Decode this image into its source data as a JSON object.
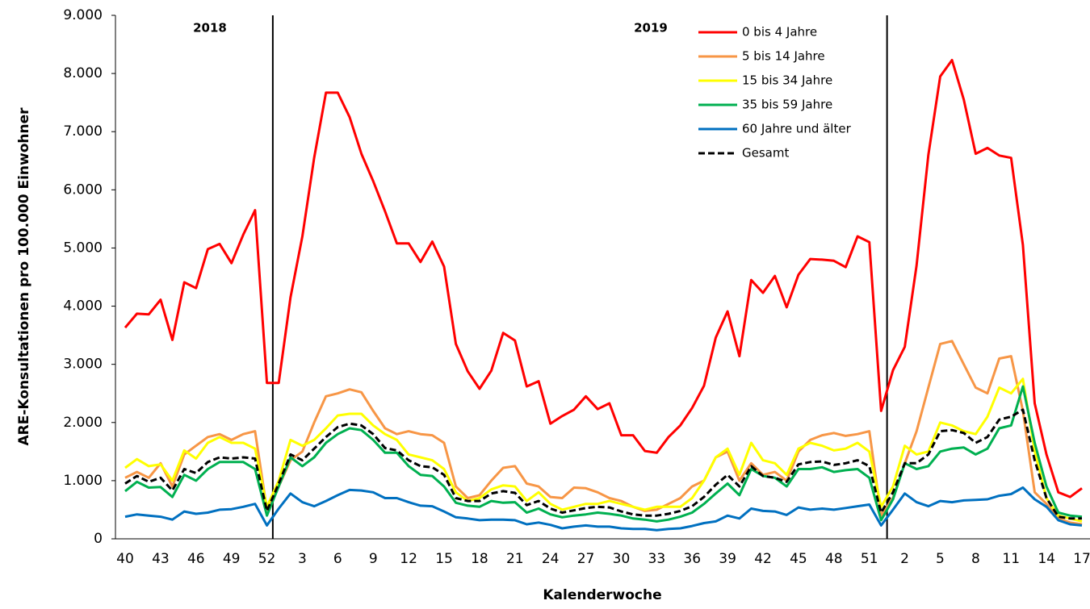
{
  "chart_data": {
    "type": "line",
    "y_label": "ARE-Konsultationen pro 100.000 Einwohner",
    "x_label": "Kalenderwoche",
    "annotations": [
      "2018",
      "2019"
    ],
    "categories": [
      "40",
      null,
      null,
      "43",
      null,
      null,
      "46",
      null,
      null,
      "49",
      null,
      null,
      "52",
      null,
      null,
      "3",
      null,
      null,
      "6",
      null,
      null,
      "9",
      null,
      null,
      "12",
      null,
      null,
      "15",
      null,
      null,
      "18",
      null,
      null,
      "21",
      null,
      null,
      "24",
      null,
      null,
      "27",
      null,
      null,
      "30",
      null,
      null,
      "33",
      null,
      null,
      "36",
      null,
      null,
      "39",
      null,
      null,
      "42",
      null,
      null,
      "45",
      null,
      null,
      "48",
      null,
      null,
      "51",
      null,
      null,
      "2",
      null,
      null,
      "5",
      null,
      null,
      "8",
      null,
      null,
      "11",
      null,
      null,
      "14",
      null,
      null,
      "17"
    ],
    "ylim": [
      0,
      9000
    ],
    "yticks": [
      0,
      {
        "value": 1000,
        "label": "1.000"
      },
      {
        "value": 2000,
        "label": "2.000"
      },
      {
        "value": 3000,
        "label": "3.000"
      },
      {
        "value": 4000,
        "label": "4.000"
      },
      {
        "value": 5000,
        "label": "5.000"
      },
      {
        "value": 6000,
        "label": "6.000"
      },
      {
        "value": 7000,
        "label": "7.000"
      },
      {
        "value": 8000,
        "label": "8.000"
      },
      {
        "value": 9000,
        "label": "9.000"
      }
    ],
    "legend": "top-right",
    "series": [
      {
        "name": "0 bis 4 Jahre",
        "color": "#ff0000",
        "values": [
          3630,
          3870,
          3860,
          4110,
          3420,
          4410,
          4310,
          4980,
          5070,
          4740,
          5230,
          5650,
          2680,
          2680,
          4150,
          5200,
          6550,
          7670,
          7670,
          7250,
          6620,
          6150,
          5630,
          5080,
          5080,
          4760,
          5110,
          4680,
          3350,
          2880,
          2580,
          2890,
          3540,
          3410,
          2620,
          2710,
          1980,
          2110,
          2220,
          2450,
          2230,
          2330,
          1780,
          1780,
          1510,
          1480,
          1750,
          1950,
          2250,
          2630,
          3460,
          3910,
          3140,
          4450,
          4230,
          4520,
          3980,
          4540,
          4810,
          4800,
          4780,
          4670,
          5200,
          5100,
          2200,
          2900,
          3300,
          4700,
          6600,
          7950,
          8230,
          7550,
          6620,
          6720,
          6590,
          6550,
          5050,
          2330,
          1450,
          800,
          720,
          870
        ]
      },
      {
        "name": "5 bis 14 Jahre",
        "color": "#f79646",
        "values": [
          1050,
          1150,
          1050,
          1300,
          900,
          1450,
          1600,
          1750,
          1800,
          1700,
          1800,
          1850,
          500,
          900,
          1350,
          1500,
          2000,
          2450,
          2500,
          2570,
          2520,
          2200,
          1900,
          1800,
          1850,
          1800,
          1780,
          1650,
          900,
          700,
          750,
          1000,
          1220,
          1250,
          950,
          900,
          720,
          700,
          880,
          870,
          800,
          700,
          650,
          550,
          480,
          500,
          600,
          700,
          900,
          1000,
          1400,
          1500,
          1000,
          1300,
          1100,
          1150,
          1000,
          1500,
          1700,
          1780,
          1820,
          1770,
          1800,
          1850,
          400,
          700,
          1300,
          1850,
          2600,
          3350,
          3400,
          3000,
          2600,
          2500,
          3100,
          3140,
          2200,
          800,
          600,
          350,
          280,
          250
        ]
      },
      {
        "name": "15 bis 34 Jahre",
        "color": "#ffff00",
        "values": [
          1220,
          1370,
          1250,
          1280,
          1000,
          1520,
          1380,
          1650,
          1750,
          1650,
          1650,
          1550,
          550,
          1000,
          1700,
          1600,
          1700,
          1900,
          2120,
          2150,
          2150,
          1950,
          1800,
          1700,
          1450,
          1400,
          1350,
          1200,
          800,
          650,
          700,
          850,
          920,
          900,
          650,
          800,
          600,
          500,
          550,
          600,
          600,
          650,
          600,
          550,
          500,
          550,
          550,
          550,
          700,
          1000,
          1400,
          1550,
          1100,
          1650,
          1350,
          1300,
          1100,
          1550,
          1650,
          1600,
          1520,
          1550,
          1650,
          1500,
          550,
          900,
          1600,
          1450,
          1500,
          2000,
          1950,
          1850,
          1800,
          2100,
          2600,
          2500,
          2750,
          1500,
          700,
          400,
          350,
          300
        ]
      },
      {
        "name": "35 bis 59 Jahre",
        "color": "#00b050",
        "values": [
          820,
          980,
          880,
          890,
          720,
          1100,
          1000,
          1200,
          1320,
          1320,
          1320,
          1200,
          400,
          900,
          1400,
          1250,
          1400,
          1650,
          1800,
          1900,
          1870,
          1700,
          1480,
          1480,
          1250,
          1100,
          1080,
          900,
          620,
          570,
          550,
          650,
          620,
          630,
          450,
          520,
          420,
          370,
          400,
          420,
          450,
          430,
          400,
          350,
          330,
          300,
          330,
          380,
          450,
          600,
          780,
          950,
          750,
          1200,
          1080,
          1050,
          900,
          1200,
          1200,
          1230,
          1150,
          1180,
          1200,
          1050,
          320,
          680,
          1300,
          1200,
          1250,
          1500,
          1550,
          1570,
          1450,
          1550,
          1900,
          1950,
          2620,
          1650,
          900,
          450,
          400,
          380
        ]
      },
      {
        "name": "60 Jahre und älter",
        "color": "#0070c0",
        "values": [
          380,
          420,
          400,
          380,
          330,
          470,
          430,
          450,
          500,
          510,
          550,
          600,
          230,
          520,
          780,
          630,
          560,
          650,
          750,
          840,
          830,
          800,
          700,
          700,
          630,
          570,
          560,
          470,
          370,
          350,
          320,
          330,
          330,
          320,
          250,
          280,
          240,
          180,
          210,
          230,
          210,
          210,
          180,
          170,
          170,
          150,
          170,
          180,
          220,
          270,
          300,
          400,
          350,
          520,
          480,
          470,
          410,
          540,
          500,
          520,
          500,
          530,
          560,
          590,
          230,
          500,
          780,
          630,
          560,
          650,
          630,
          660,
          670,
          680,
          740,
          770,
          880,
          680,
          550,
          320,
          250,
          230
        ]
      },
      {
        "name": "Gesamt",
        "color": "#000000",
        "dashed": true,
        "values": [
          950,
          1080,
          980,
          1050,
          830,
          1200,
          1130,
          1320,
          1400,
          1380,
          1400,
          1380,
          480,
          950,
          1450,
          1350,
          1550,
          1750,
          1920,
          1980,
          1950,
          1800,
          1560,
          1520,
          1350,
          1250,
          1230,
          1100,
          700,
          650,
          650,
          780,
          820,
          790,
          580,
          650,
          520,
          450,
          490,
          530,
          550,
          540,
          470,
          420,
          400,
          400,
          430,
          480,
          560,
          720,
          930,
          1100,
          900,
          1250,
          1080,
          1050,
          980,
          1280,
          1320,
          1330,
          1270,
          1300,
          1350,
          1250,
          450,
          800,
          1300,
          1300,
          1450,
          1850,
          1870,
          1820,
          1650,
          1750,
          2050,
          2100,
          2220,
          1350,
          700,
          380,
          350,
          350
        ]
      }
    ]
  }
}
